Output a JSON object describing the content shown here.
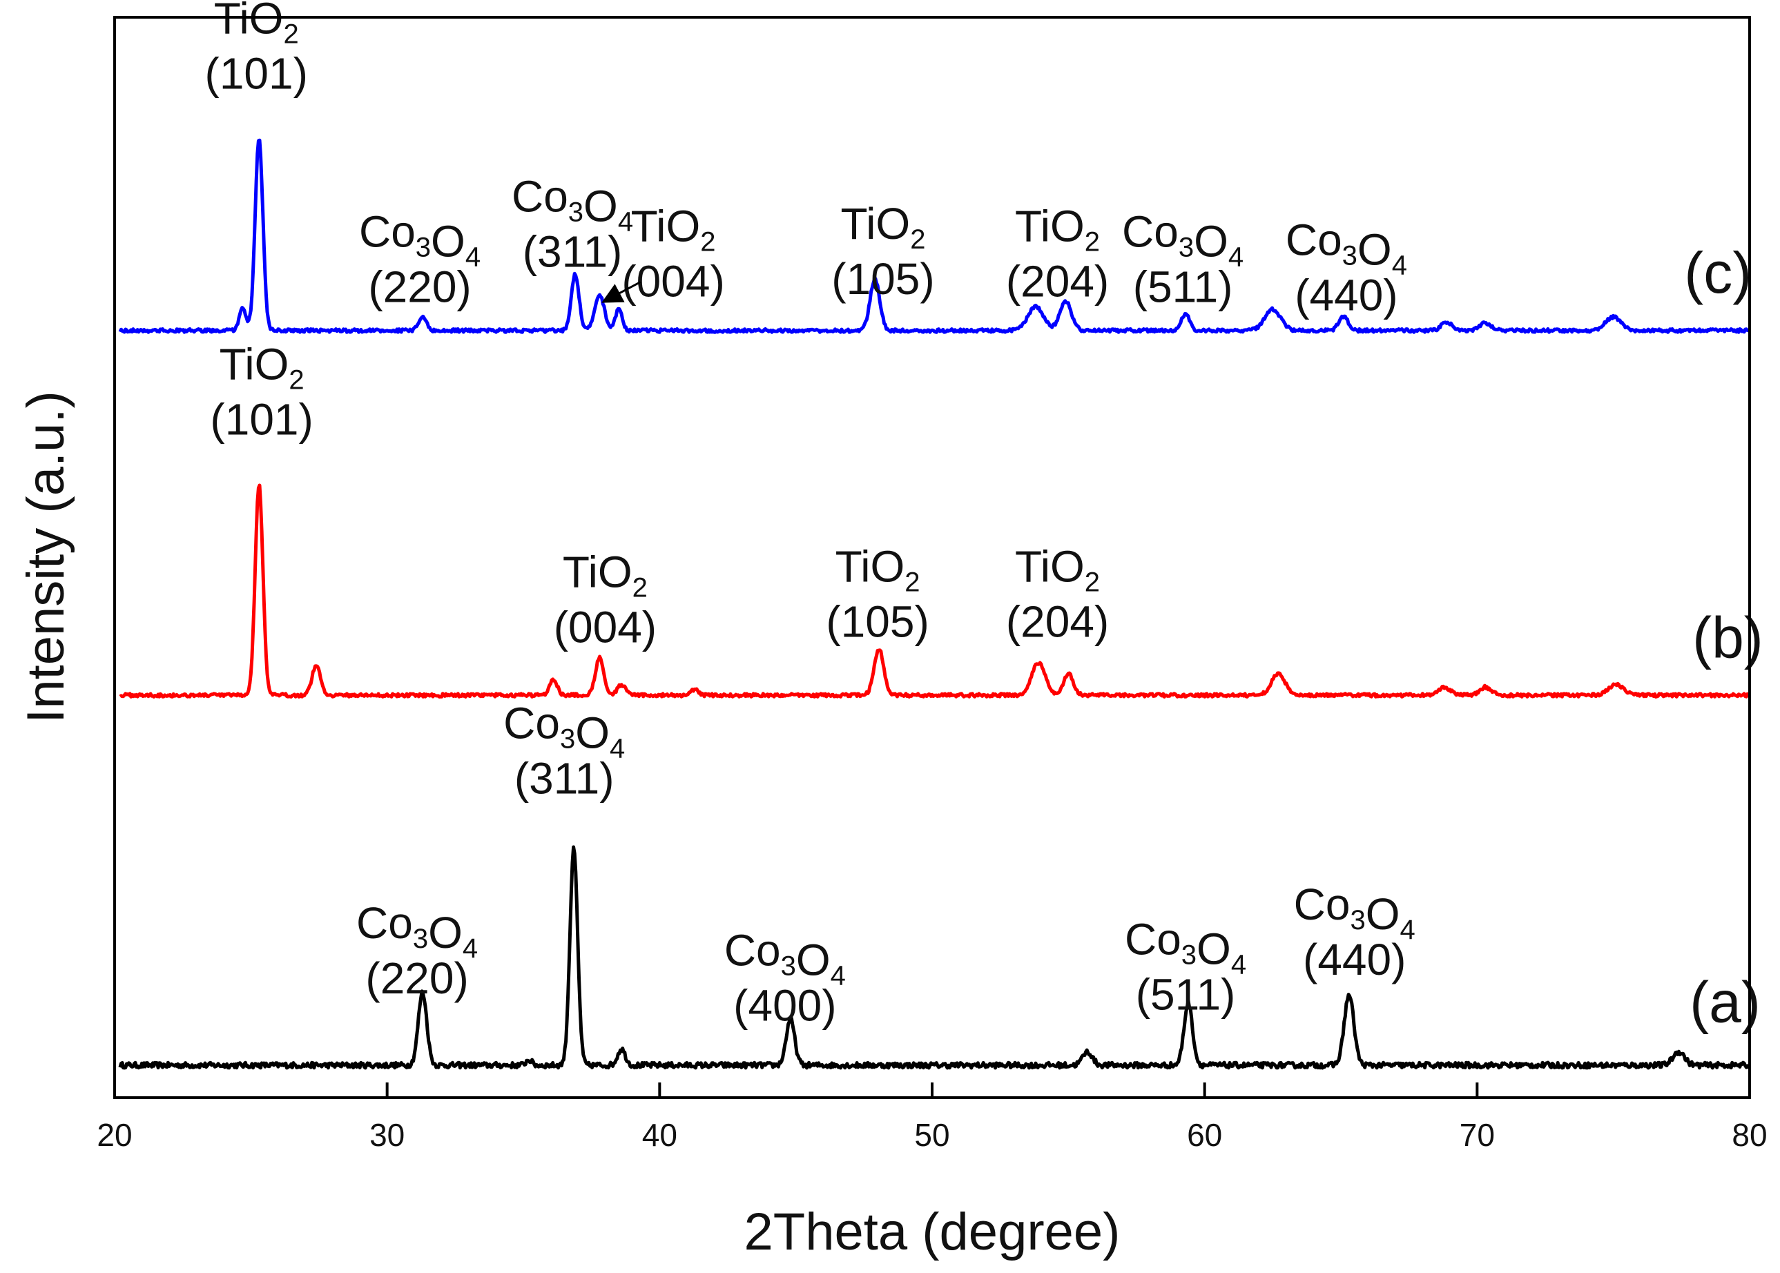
{
  "chart_data": {
    "type": "line",
    "title": "",
    "xlabel": "2Theta (degree)",
    "ylabel": "Intensity (a.u.)",
    "xlim": [
      20,
      80
    ],
    "ylim": [
      0,
      4
    ],
    "xticks": [
      20,
      30,
      40,
      50,
      60,
      70,
      80
    ],
    "y_tick_labels_shown": false,
    "grid": false,
    "legend": "none",
    "series": [
      {
        "name": "(a)",
        "color": "#000000",
        "baseline": 0.12,
        "noise": 0.01,
        "peaks": [
          {
            "x": 31.3,
            "h": 0.27,
            "w": 0.22
          },
          {
            "x": 35.2,
            "h": 0.02,
            "w": 0.15
          },
          {
            "x": 36.85,
            "h": 0.8,
            "w": 0.2
          },
          {
            "x": 38.6,
            "h": 0.06,
            "w": 0.2
          },
          {
            "x": 44.8,
            "h": 0.17,
            "w": 0.22
          },
          {
            "x": 55.7,
            "h": 0.05,
            "w": 0.25
          },
          {
            "x": 59.4,
            "h": 0.23,
            "w": 0.22
          },
          {
            "x": 65.3,
            "h": 0.26,
            "w": 0.25
          },
          {
            "x": 77.4,
            "h": 0.05,
            "w": 0.3
          }
        ],
        "label": "(a)",
        "label_x": 77.8,
        "label_y": 0.28,
        "annotations": [
          {
            "compound": "Co3O4",
            "hkl": "(220)",
            "x": 31.1,
            "y": 0.59
          },
          {
            "compound": "Co3O4",
            "hkl": "(311)",
            "x": 36.5,
            "y": 1.33
          },
          {
            "compound": "Co3O4",
            "hkl": "(400)",
            "x": 44.6,
            "y": 0.49
          },
          {
            "compound": "Co3O4",
            "hkl": "(511)",
            "x": 59.3,
            "y": 0.53
          },
          {
            "compound": "Co3O4",
            "hkl": "(440)",
            "x": 65.5,
            "y": 0.66
          }
        ]
      },
      {
        "name": "(b)",
        "color": "#ff0000",
        "baseline": 1.49,
        "noise": 0.006,
        "peaks": [
          {
            "x": 25.3,
            "h": 0.78,
            "w": 0.2
          },
          {
            "x": 27.4,
            "h": 0.11,
            "w": 0.22
          },
          {
            "x": 36.1,
            "h": 0.06,
            "w": 0.2
          },
          {
            "x": 37.8,
            "h": 0.14,
            "w": 0.22
          },
          {
            "x": 38.6,
            "h": 0.04,
            "w": 0.2
          },
          {
            "x": 41.3,
            "h": 0.02,
            "w": 0.2
          },
          {
            "x": 48.05,
            "h": 0.17,
            "w": 0.25
          },
          {
            "x": 53.9,
            "h": 0.12,
            "w": 0.35
          },
          {
            "x": 55.0,
            "h": 0.08,
            "w": 0.25
          },
          {
            "x": 62.7,
            "h": 0.08,
            "w": 0.35
          },
          {
            "x": 68.8,
            "h": 0.03,
            "w": 0.3
          },
          {
            "x": 70.3,
            "h": 0.03,
            "w": 0.3
          },
          {
            "x": 75.1,
            "h": 0.04,
            "w": 0.4
          }
        ],
        "label": "(b)",
        "label_x": 77.9,
        "label_y": 1.63,
        "annotations": [
          {
            "compound": "TiO2",
            "hkl": "(101)",
            "x": 25.4,
            "y": 2.66
          },
          {
            "compound": "TiO2",
            "hkl": "(004)",
            "x": 38.0,
            "y": 1.89
          },
          {
            "compound": "TiO2",
            "hkl": "(105)",
            "x": 48.0,
            "y": 1.91
          },
          {
            "compound": "TiO2",
            "hkl": "(204)",
            "x": 54.6,
            "y": 1.91
          }
        ]
      },
      {
        "name": "(c)",
        "color": "#0000ff",
        "baseline": 2.84,
        "noise": 0.006,
        "peaks": [
          {
            "x": 24.7,
            "h": 0.08,
            "w": 0.18
          },
          {
            "x": 25.3,
            "h": 0.71,
            "w": 0.2
          },
          {
            "x": 31.3,
            "h": 0.05,
            "w": 0.2
          },
          {
            "x": 36.9,
            "h": 0.21,
            "w": 0.2
          },
          {
            "x": 37.8,
            "h": 0.13,
            "w": 0.25
          },
          {
            "x": 38.5,
            "h": 0.08,
            "w": 0.18
          },
          {
            "x": 47.9,
            "h": 0.19,
            "w": 0.25
          },
          {
            "x": 53.8,
            "h": 0.09,
            "w": 0.4
          },
          {
            "x": 54.9,
            "h": 0.11,
            "w": 0.3
          },
          {
            "x": 59.3,
            "h": 0.06,
            "w": 0.22
          },
          {
            "x": 62.5,
            "h": 0.08,
            "w": 0.4
          },
          {
            "x": 65.1,
            "h": 0.05,
            "w": 0.25
          },
          {
            "x": 68.9,
            "h": 0.03,
            "w": 0.3
          },
          {
            "x": 70.3,
            "h": 0.03,
            "w": 0.3
          },
          {
            "x": 75.0,
            "h": 0.05,
            "w": 0.4
          }
        ],
        "label": "(c)",
        "label_x": 77.6,
        "label_y": 2.98,
        "annotations": [
          {
            "compound": "TiO2",
            "hkl": "(101)",
            "x": 25.2,
            "y": 3.94
          },
          {
            "compound": "Co3O4",
            "hkl": "(220)",
            "x": 31.2,
            "y": 3.15
          },
          {
            "compound": "Co3O4",
            "hkl": "(311)",
            "x": 36.8,
            "y": 3.28
          },
          {
            "compound": "TiO2",
            "hkl": "(004)",
            "x": 40.5,
            "y": 3.17
          },
          {
            "compound": "TiO2",
            "hkl": "(105)",
            "x": 48.2,
            "y": 3.18
          },
          {
            "compound": "TiO2",
            "hkl": "(204)",
            "x": 54.6,
            "y": 3.17
          },
          {
            "compound": "Co3O4",
            "hkl": "(511)",
            "x": 59.2,
            "y": 3.15
          },
          {
            "compound": "Co3O4",
            "hkl": "(440)",
            "x": 65.2,
            "y": 3.12
          }
        ],
        "arrow": {
          "from": [
            39.3,
            3.02
          ],
          "to": [
            38.0,
            2.95
          ]
        }
      }
    ]
  }
}
